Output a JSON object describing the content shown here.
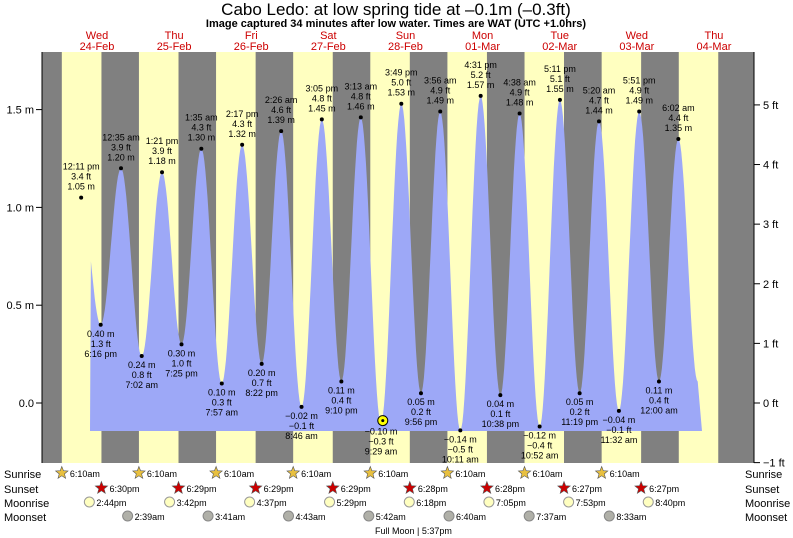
{
  "title": "Cabo Ledo: at low  spring tide at –0.1m (–0.3ft)",
  "subtitle": "Image captured 34 minutes after low water. Times are WAT (UTC +1.0hrs)",
  "row_labels": [
    "Sunrise",
    "Sunset",
    "Moonrise",
    "Moonset"
  ],
  "moon_phase": "Full Moon | 5:37pm",
  "colors": {
    "night": "#808080",
    "day": "#ffffc0",
    "water": "#9da8f7",
    "sun": "#cc0000"
  },
  "chart_data": {
    "type": "area",
    "yaxis_left": {
      "unit": "m",
      "ticks": [
        -0.0,
        0.5,
        1.0,
        1.5
      ],
      "tick_labels": [
        "0.0",
        "0.5 m",
        "1.0 m",
        "1.5 m"
      ]
    },
    "yaxis_right": {
      "unit": "ft",
      "ticks": [
        -1,
        0,
        1,
        2,
        3,
        4,
        5
      ],
      "tick_labels": [
        "−1 ft",
        "0 ft",
        "1 ft",
        "2 ft",
        "3 ft",
        "4 ft",
        "5 ft"
      ]
    },
    "days": [
      {
        "weekday": "Wed",
        "date": "24-Feb"
      },
      {
        "weekday": "Thu",
        "date": "25-Feb"
      },
      {
        "weekday": "Fri",
        "date": "26-Feb"
      },
      {
        "weekday": "Sat",
        "date": "27-Feb"
      },
      {
        "weekday": "Sun",
        "date": "28-Feb"
      },
      {
        "weekday": "Mon",
        "date": "01-Mar"
      },
      {
        "weekday": "Tue",
        "date": "02-Mar"
      },
      {
        "weekday": "Wed",
        "date": "03-Mar"
      },
      {
        "weekday": "Thu",
        "date": "04-Mar"
      }
    ],
    "tides": [
      {
        "type": "high",
        "day": 0,
        "time": "12:11 pm",
        "ft": "3.4 ft",
        "m": 1.05,
        "m_label": "1.05 m"
      },
      {
        "type": "low",
        "day": 0,
        "time": "6:16 pm",
        "ft": "1.3 ft",
        "m": 0.4,
        "m_label": "0.40 m"
      },
      {
        "type": "high",
        "day": 1,
        "time": "12:35 am",
        "ft": "3.9 ft",
        "m": 1.2,
        "m_label": "1.20 m"
      },
      {
        "type": "low",
        "day": 1,
        "time": "7:02 am",
        "ft": "0.8 ft",
        "m": 0.24,
        "m_label": "0.24 m"
      },
      {
        "type": "high",
        "day": 1,
        "time": "1:21 pm",
        "ft": "3.9 ft",
        "m": 1.18,
        "m_label": "1.18 m"
      },
      {
        "type": "low",
        "day": 1,
        "time": "7:25 pm",
        "ft": "1.0 ft",
        "m": 0.3,
        "m_label": "0.30 m"
      },
      {
        "type": "high",
        "day": 2,
        "time": "1:35 am",
        "ft": "4.3 ft",
        "m": 1.3,
        "m_label": "1.30 m"
      },
      {
        "type": "low",
        "day": 2,
        "time": "7:57 am",
        "ft": "0.3 ft",
        "m": 0.1,
        "m_label": "0.10 m"
      },
      {
        "type": "high",
        "day": 2,
        "time": "2:17 pm",
        "ft": "4.3 ft",
        "m": 1.32,
        "m_label": "1.32 m"
      },
      {
        "type": "low",
        "day": 2,
        "time": "8:22 pm",
        "ft": "0.7 ft",
        "m": 0.2,
        "m_label": "0.20 m"
      },
      {
        "type": "high",
        "day": 3,
        "time": "2:26 am",
        "ft": "4.6 ft",
        "m": 1.39,
        "m_label": "1.39 m"
      },
      {
        "type": "low",
        "day": 3,
        "time": "8:46 am",
        "ft": "−0.1 ft",
        "m": -0.02,
        "m_label": "−0.02 m"
      },
      {
        "type": "high",
        "day": 3,
        "time": "3:05 pm",
        "ft": "4.8 ft",
        "m": 1.45,
        "m_label": "1.45 m"
      },
      {
        "type": "low",
        "day": 3,
        "time": "9:10 pm",
        "ft": "0.4 ft",
        "m": 0.11,
        "m_label": "0.11 m"
      },
      {
        "type": "high",
        "day": 4,
        "time": "3:13 am",
        "ft": "4.8 ft",
        "m": 1.46,
        "m_label": "1.46 m"
      },
      {
        "type": "low",
        "day": 4,
        "time": "9:29 am",
        "ft": "−0.3 ft",
        "m": -0.1,
        "m_label": "−0.10 m"
      },
      {
        "type": "high",
        "day": 4,
        "time": "3:49 pm",
        "ft": "5.0 ft",
        "m": 1.53,
        "m_label": "1.53 m"
      },
      {
        "type": "low",
        "day": 4,
        "time": "9:56 pm",
        "ft": "0.2 ft",
        "m": 0.05,
        "m_label": "0.05 m"
      },
      {
        "type": "high",
        "day": 5,
        "time": "3:56 am",
        "ft": "4.9 ft",
        "m": 1.49,
        "m_label": "1.49 m"
      },
      {
        "type": "low",
        "day": 5,
        "time": "10:11 am",
        "ft": "−0.5 ft",
        "m": -0.14,
        "m_label": "−0.14 m"
      },
      {
        "type": "high",
        "day": 5,
        "time": "4:31 pm",
        "ft": "5.2 ft",
        "m": 1.57,
        "m_label": "1.57 m"
      },
      {
        "type": "low",
        "day": 5,
        "time": "10:38 pm",
        "ft": "0.1 ft",
        "m": 0.04,
        "m_label": "0.04 m"
      },
      {
        "type": "high",
        "day": 6,
        "time": "4:38 am",
        "ft": "4.9 ft",
        "m": 1.48,
        "m_label": "1.48 m"
      },
      {
        "type": "low",
        "day": 6,
        "time": "10:52 am",
        "ft": "−0.4 ft",
        "m": -0.12,
        "m_label": "−0.12 m"
      },
      {
        "type": "high",
        "day": 6,
        "time": "5:11 pm",
        "ft": "5.1 ft",
        "m": 1.55,
        "m_label": "1.55 m"
      },
      {
        "type": "low",
        "day": 6,
        "time": "11:19 pm",
        "ft": "0.2 ft",
        "m": 0.05,
        "m_label": "0.05 m"
      },
      {
        "type": "high",
        "day": 7,
        "time": "5:20 am",
        "ft": "4.7 ft",
        "m": 1.44,
        "m_label": "1.44 m"
      },
      {
        "type": "low",
        "day": 7,
        "time": "11:32 am",
        "ft": "−0.1 ft",
        "m": -0.04,
        "m_label": "−0.04 m"
      },
      {
        "type": "high",
        "day": 7,
        "time": "5:51 pm",
        "ft": "4.9 ft",
        "m": 1.49,
        "m_label": "1.49 m"
      },
      {
        "type": "low",
        "day": 8,
        "time": "12:00 am",
        "ft": "0.4 ft",
        "m": 0.11,
        "m_label": "0.11 m"
      },
      {
        "type": "high",
        "day": 8,
        "time": "6:02 am",
        "ft": "4.4 ft",
        "m": 1.35,
        "m_label": "1.35 m"
      }
    ],
    "current": {
      "day": 4,
      "time": "10:03 am",
      "m": -0.09
    },
    "sunrise": [
      "6:10am",
      "6:10am",
      "6:10am",
      "6:10am",
      "6:10am",
      "6:10am",
      "6:10am",
      "6:10am"
    ],
    "sunset": [
      "6:30pm",
      "6:29pm",
      "6:29pm",
      "6:29pm",
      "6:28pm",
      "6:28pm",
      "6:27pm",
      "6:27pm"
    ],
    "moonrise": [
      "2:44pm",
      "3:42pm",
      "4:37pm",
      "5:29pm",
      "6:18pm",
      "7:05pm",
      "7:53pm",
      "8:40pm"
    ],
    "moonset": [
      "2:39am",
      "3:41am",
      "4:43am",
      "5:42am",
      "6:40am",
      "7:37am",
      "8:33am"
    ],
    "moonset_days": [
      1,
      2,
      3,
      4,
      5,
      6,
      7
    ]
  }
}
